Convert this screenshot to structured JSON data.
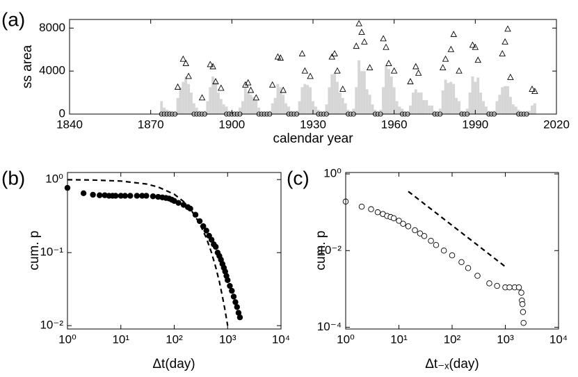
{
  "chart_data": [
    {
      "type": "scatter",
      "panel": "(a)",
      "xlabel": "calendar year",
      "ylabel": "ss area",
      "xlim": [
        1840,
        2020
      ],
      "ylim": [
        0,
        8800
      ],
      "xticks": [
        1840,
        1870,
        1900,
        1930,
        1960,
        1990,
        2020
      ],
      "yticks": [
        0,
        4000,
        8000
      ],
      "series": [
        {
          "marker": "bar",
          "color": "#d6d6d6",
          "x": [
            1874,
            1875,
            1876,
            1877,
            1878,
            1879,
            1880,
            1881,
            1882,
            1883,
            1884,
            1885,
            1886,
            1887,
            1888,
            1889,
            1890,
            1891,
            1892,
            1893,
            1894,
            1895,
            1896,
            1897,
            1898,
            1899,
            1900,
            1901,
            1902,
            1903,
            1904,
            1905,
            1906,
            1907,
            1908,
            1909,
            1910,
            1911,
            1912,
            1913,
            1914,
            1915,
            1916,
            1917,
            1918,
            1919,
            1920,
            1921,
            1922,
            1923,
            1924,
            1925,
            1926,
            1927,
            1928,
            1929,
            1930,
            1931,
            1932,
            1933,
            1934,
            1935,
            1936,
            1937,
            1938,
            1939,
            1940,
            1941,
            1942,
            1943,
            1944,
            1945,
            1946,
            1947,
            1948,
            1949,
            1950,
            1951,
            1952,
            1953,
            1954,
            1955,
            1956,
            1957,
            1958,
            1959,
            1960,
            1961,
            1962,
            1963,
            1964,
            1965,
            1966,
            1967,
            1968,
            1969,
            1970,
            1971,
            1972,
            1973,
            1974,
            1975,
            1976,
            1977,
            1978,
            1979,
            1980,
            1981,
            1982,
            1983,
            1984,
            1985,
            1986,
            1987,
            1988,
            1989,
            1990,
            1991,
            1992,
            1993,
            1994,
            1995,
            1996,
            1997,
            1998,
            1999,
            2000,
            2001,
            2002,
            2003,
            2004,
            2005,
            2006,
            2007,
            2008,
            2009,
            2010,
            2011,
            2012
          ],
          "values": [
            1200,
            600,
            400,
            300,
            100,
            200,
            1500,
            2500,
            3000,
            3500,
            2800,
            2000,
            1000,
            600,
            300,
            150,
            300,
            1200,
            2500,
            3500,
            3000,
            2000,
            1400,
            900,
            700,
            300,
            200,
            100,
            150,
            600,
            1200,
            2500,
            2000,
            1800,
            1600,
            1300,
            600,
            200,
            100,
            80,
            300,
            1000,
            1500,
            2800,
            2500,
            1800,
            1000,
            700,
            300,
            100,
            300,
            1200,
            2500,
            2800,
            2700,
            2500,
            1200,
            700,
            400,
            150,
            200,
            900,
            2500,
            3700,
            3800,
            3000,
            2000,
            1500,
            1000,
            400,
            150,
            500,
            2500,
            5000,
            4000,
            4000,
            2300,
            1800,
            900,
            400,
            100,
            400,
            2500,
            4500,
            4200,
            3500,
            2500,
            1200,
            700,
            500,
            200,
            200,
            800,
            2000,
            2300,
            2000,
            2000,
            1300,
            1300,
            800,
            800,
            300,
            150,
            500,
            2200,
            3200,
            2900,
            3000,
            2800,
            1500,
            1200,
            300,
            150,
            500,
            2000,
            3500,
            3000,
            3400,
            2000,
            1200,
            700,
            300,
            150,
            300,
            1200,
            1800,
            2500,
            2600,
            2600,
            1600,
            900,
            700,
            400,
            150,
            50,
            50,
            300,
            800,
            1000
          ]
        },
        {
          "marker": "open-triangle",
          "color": "#000000",
          "x": [
            1880,
            1882,
            1883,
            1884,
            1889,
            1892,
            1893,
            1894,
            1896,
            1905,
            1906,
            1907,
            1909,
            1915,
            1917,
            1918,
            1919,
            1926,
            1927,
            1929,
            1937,
            1938,
            1939,
            1941,
            1946,
            1947,
            1948,
            1949,
            1951,
            1956,
            1957,
            1958,
            1960,
            1966,
            1968,
            1969,
            1978,
            1979,
            1981,
            1982,
            1984,
            1989,
            1990,
            1991,
            2000,
            2001,
            2002,
            2003,
            2011,
            2012
          ],
          "values": [
            2500,
            5100,
            4700,
            3500,
            1500,
            4600,
            4400,
            3000,
            2400,
            2700,
            2900,
            2200,
            1500,
            2700,
            5300,
            5200,
            2200,
            5600,
            4000,
            3500,
            5300,
            5600,
            4000,
            2300,
            6300,
            8400,
            7600,
            6700,
            4300,
            7000,
            6200,
            4700,
            4000,
            3000,
            4400,
            3800,
            4300,
            5100,
            6000,
            7400,
            4000,
            6400,
            6200,
            5000,
            5600,
            6700,
            7900,
            3400,
            2300,
            2100
          ]
        },
        {
          "marker": "open-circle",
          "color": "#000000",
          "x": [
            1874,
            1875,
            1876,
            1877,
            1878,
            1879,
            1886,
            1887,
            1888,
            1889,
            1890,
            1898,
            1899,
            1900,
            1901,
            1902,
            1903,
            1910,
            1911,
            1912,
            1913,
            1914,
            1921,
            1922,
            1923,
            1924,
            1932,
            1933,
            1934,
            1935,
            1943,
            1944,
            1945,
            1953,
            1954,
            1955,
            1963,
            1964,
            1965,
            1975,
            1976,
            1977,
            1985,
            1986,
            1987,
            1995,
            1996,
            1997,
            2006,
            2007,
            2008,
            2009
          ],
          "values": [
            0,
            0,
            0,
            0,
            0,
            0,
            0,
            0,
            0,
            0,
            0,
            0,
            0,
            0,
            0,
            0,
            0,
            0,
            0,
            0,
            0,
            0,
            0,
            0,
            0,
            0,
            0,
            0,
            0,
            0,
            0,
            0,
            0,
            0,
            0,
            0,
            0,
            0,
            0,
            0,
            0,
            0,
            0,
            0,
            0,
            0,
            0,
            0,
            0,
            0,
            0,
            0
          ]
        }
      ]
    },
    {
      "type": "scatter",
      "panel": "(b)",
      "xlabel": "Δt(day)",
      "ylabel": "cum. p",
      "xscale": "log",
      "yscale": "log",
      "xlim": [
        1,
        10000
      ],
      "ylim": [
        0.009,
        1.25
      ],
      "xticks": [
        {
          "value": 1,
          "label": "10⁰"
        },
        {
          "value": 10,
          "label": "10¹"
        },
        {
          "value": 100,
          "label": "10²"
        },
        {
          "value": 1000,
          "label": "10³"
        },
        {
          "value": 10000,
          "label": "10⁴"
        }
      ],
      "yticks": [
        {
          "value": 0.01,
          "label": "10⁻²"
        },
        {
          "value": 0.1,
          "label": "10⁻¹"
        },
        {
          "value": 1,
          "label": "10⁰"
        }
      ],
      "series": [
        {
          "marker": "filled-circle",
          "color": "#000000",
          "x": [
            1,
            2,
            3,
            4,
            5,
            6,
            7,
            8,
            10,
            12,
            15,
            20,
            25,
            30,
            40,
            50,
            60,
            70,
            80,
            90,
            100,
            120,
            150,
            180,
            200,
            250,
            300,
            350,
            400,
            450,
            500,
            550,
            600,
            650,
            700,
            750,
            800,
            850,
            900,
            950,
            1000,
            1100,
            1200,
            1300,
            1400,
            1500,
            1600,
            1700
          ],
          "values": [
            0.77,
            0.65,
            0.62,
            0.61,
            0.61,
            0.6,
            0.6,
            0.6,
            0.6,
            0.6,
            0.6,
            0.6,
            0.6,
            0.6,
            0.59,
            0.58,
            0.57,
            0.56,
            0.55,
            0.53,
            0.51,
            0.48,
            0.45,
            0.42,
            0.4,
            0.33,
            0.27,
            0.23,
            0.2,
            0.17,
            0.15,
            0.13,
            0.12,
            0.1,
            0.09,
            0.08,
            0.07,
            0.062,
            0.055,
            0.048,
            0.042,
            0.035,
            0.03,
            0.025,
            0.021,
            0.018,
            0.015,
            0.013
          ]
        },
        {
          "marker": "dashed-line",
          "color": "#000000",
          "x": [
            1,
            3,
            10,
            30,
            50,
            100,
            150,
            200,
            300,
            400,
            500,
            600,
            700,
            800,
            900,
            1000
          ],
          "values": [
            0.995,
            0.986,
            0.955,
            0.87,
            0.79,
            0.63,
            0.5,
            0.4,
            0.25,
            0.158,
            0.1,
            0.063,
            0.04,
            0.025,
            0.016,
            0.01
          ]
        }
      ]
    },
    {
      "type": "scatter",
      "panel": "(c)",
      "xlabel": "Δt₋ₓ(day)",
      "ylabel": "cum. p",
      "xscale": "log",
      "yscale": "log",
      "xlim": [
        1,
        10000
      ],
      "ylim": [
        9e-05,
        1.09
      ],
      "xticks": [
        {
          "value": 1,
          "label": "10⁰"
        },
        {
          "value": 10,
          "label": "10¹"
        },
        {
          "value": 100,
          "label": "10²"
        },
        {
          "value": 1000,
          "label": "10³"
        },
        {
          "value": 10000,
          "label": "10⁴"
        }
      ],
      "yticks": [
        {
          "value": 0.0001,
          "label": "10⁻⁴"
        },
        {
          "value": 0.01,
          "label": "10⁻²"
        },
        {
          "value": 1,
          "label": "10⁰"
        }
      ],
      "series": [
        {
          "marker": "open-circle",
          "color": "#000000",
          "x": [
            1,
            2,
            3,
            4,
            5,
            6,
            7,
            8,
            10,
            12,
            15,
            20,
            25,
            30,
            40,
            50,
            70,
            100,
            150,
            200,
            300,
            500,
            700,
            1000,
            1200,
            1500,
            1800,
            2000,
            2050,
            2100,
            2150,
            2200
          ],
          "values": [
            0.19,
            0.14,
            0.12,
            0.1,
            0.09,
            0.08,
            0.075,
            0.07,
            0.06,
            0.05,
            0.043,
            0.034,
            0.028,
            0.024,
            0.018,
            0.014,
            0.01,
            0.0075,
            0.005,
            0.0035,
            0.0022,
            0.0014,
            0.0012,
            0.0011,
            0.0011,
            0.0011,
            0.0011,
            0.0008,
            0.0005,
            0.0004,
            0.00025,
            0.00013
          ]
        },
        {
          "marker": "dashed-line",
          "color": "#000000",
          "x": [
            15,
            1000
          ],
          "values": [
            0.35,
            0.0038
          ]
        }
      ]
    }
  ]
}
